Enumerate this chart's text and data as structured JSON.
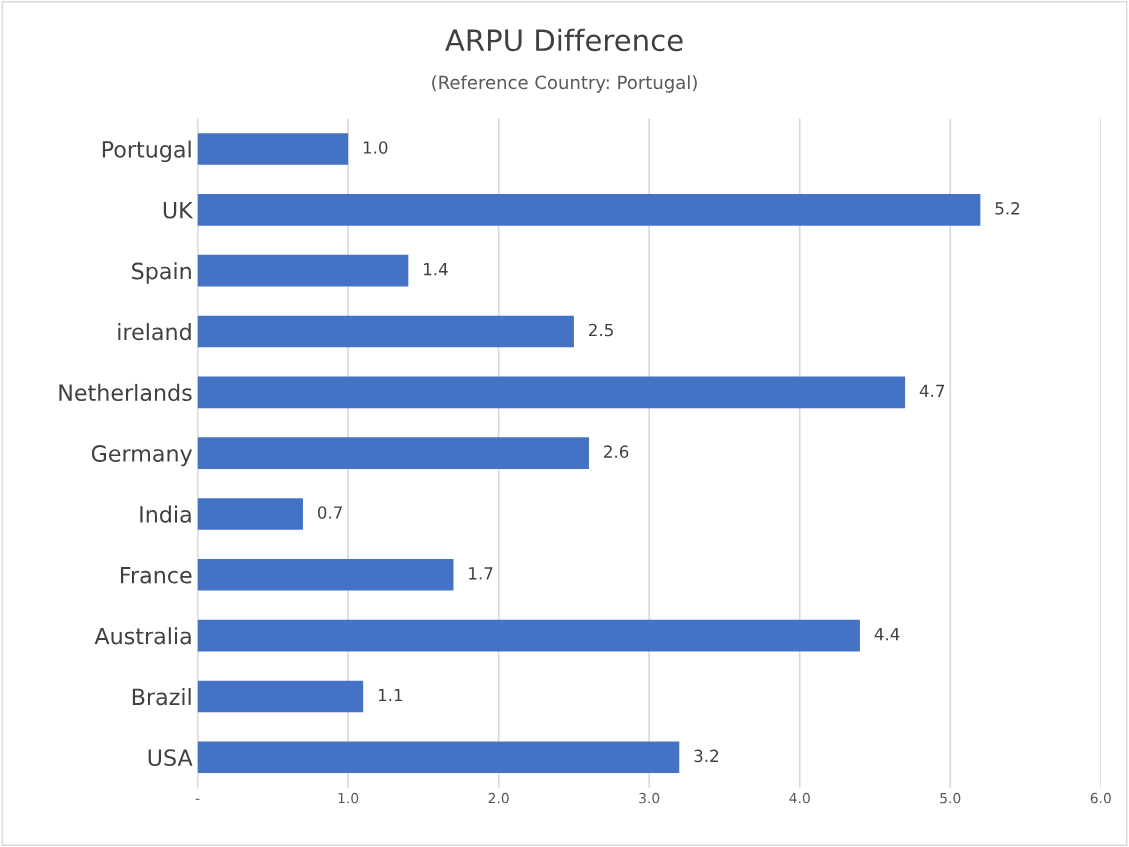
{
  "chart_data": {
    "type": "bar",
    "orientation": "horizontal",
    "title": "ARPU Difference",
    "subtitle": "(Reference Country: Portugal)",
    "categories": [
      "Portugal",
      "UK",
      "Spain",
      "ireland",
      "Netherlands",
      "Germany",
      "India",
      "France",
      "Australia",
      "Brazil",
      "USA"
    ],
    "values": [
      1.0,
      5.2,
      1.4,
      2.5,
      4.7,
      2.6,
      0.7,
      1.7,
      4.4,
      1.1,
      3.2
    ],
    "value_labels": [
      "1.0",
      "5.2",
      "1.4",
      "2.5",
      "4.7",
      "2.6",
      "0.7",
      "1.7",
      "4.4",
      "1.1",
      "3.2"
    ],
    "color": "#4472c4",
    "xlim": [
      0,
      6
    ],
    "xticks": [
      {
        "value": 0,
        "label": "-"
      },
      {
        "value": 1,
        "label": "1.0"
      },
      {
        "value": 2,
        "label": "2.0"
      },
      {
        "value": 3,
        "label": "3.0"
      },
      {
        "value": 4,
        "label": "4.0"
      },
      {
        "value": 5,
        "label": "5.0"
      },
      {
        "value": 6,
        "label": "6.0"
      }
    ],
    "grid": "x"
  }
}
